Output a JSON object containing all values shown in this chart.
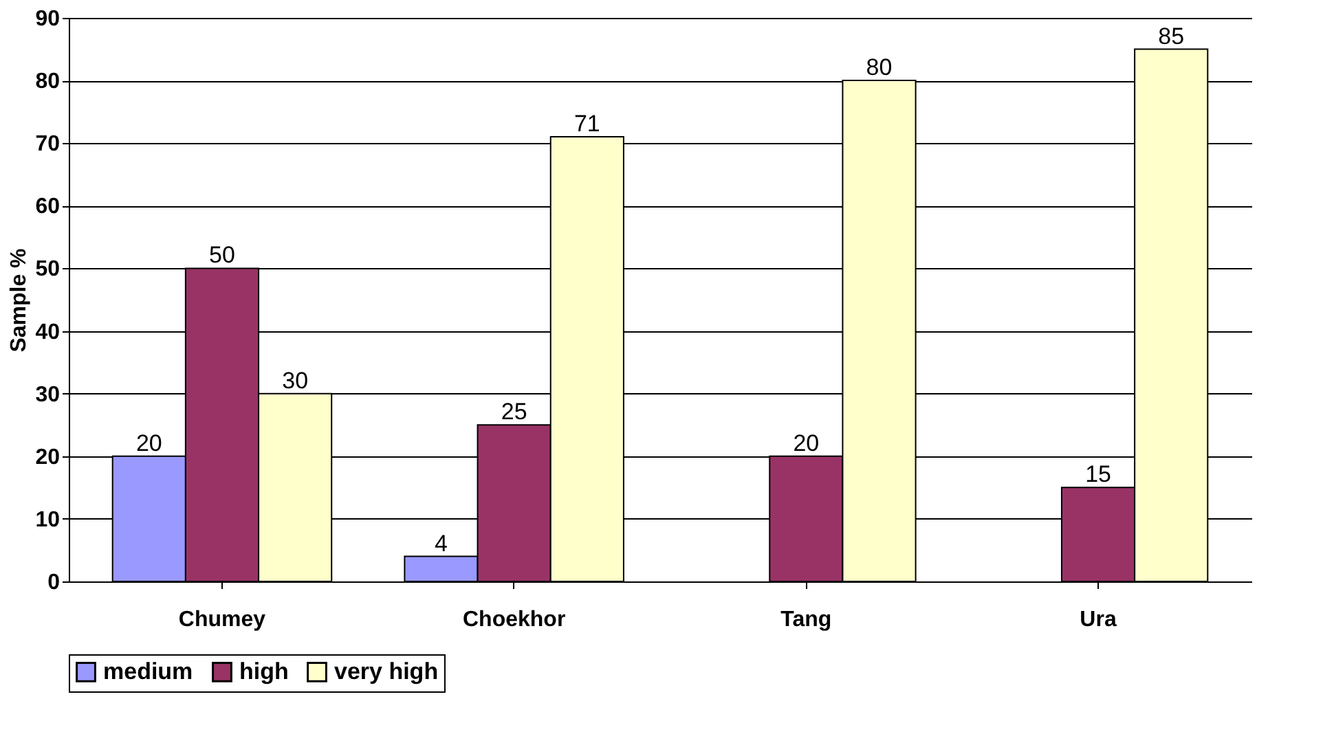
{
  "chart_data": {
    "type": "bar",
    "ylabel": "Sample %",
    "categories": [
      "Chumey",
      "Choekhor",
      "Tang",
      "Ura"
    ],
    "series": [
      {
        "name": "medium",
        "color": "#9999ff",
        "values": [
          20,
          4,
          null,
          null
        ]
      },
      {
        "name": "high",
        "color": "#993366",
        "values": [
          50,
          25,
          20,
          15
        ]
      },
      {
        "name": "very high",
        "color": "#ffffcc",
        "values": [
          30,
          71,
          80,
          85
        ]
      }
    ],
    "ylim": [
      0,
      90
    ],
    "yticks": [
      0,
      10,
      20,
      30,
      40,
      50,
      60,
      70,
      80,
      90
    ],
    "grid": "y",
    "legend": "bottom",
    "data_labels": true
  }
}
